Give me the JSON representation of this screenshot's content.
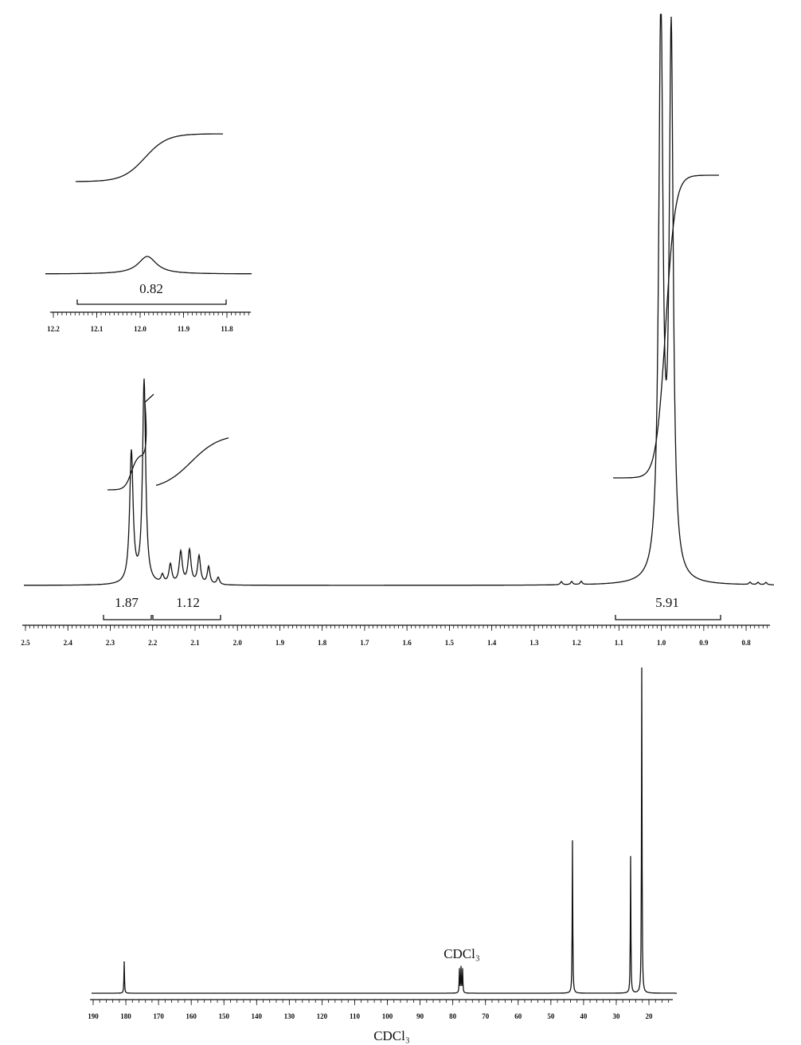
{
  "inset": {
    "integral": "0.82",
    "ticks": [
      "12.2",
      "12.1",
      "12.0",
      "11.9",
      "11.8"
    ]
  },
  "proton": {
    "integrals": [
      "1.87",
      "1.12",
      "5.91"
    ],
    "ticks": [
      "2.5",
      "2.4",
      "2.3",
      "2.2",
      "2.1",
      "2.0",
      "1.9",
      "1.8",
      "1.7",
      "1.6",
      "1.5",
      "1.4",
      "1.3",
      "1.2",
      "1.1",
      "1.0",
      "0.9",
      "0.8"
    ]
  },
  "carbon": {
    "solvent_peak_label": "CDCl₃",
    "ticks": [
      "190",
      "180",
      "170",
      "160",
      "150",
      "140",
      "130",
      "120",
      "110",
      "100",
      "90",
      "80",
      "70",
      "60",
      "50",
      "40",
      "30",
      "20"
    ],
    "solvent": "CDCl₃"
  }
}
